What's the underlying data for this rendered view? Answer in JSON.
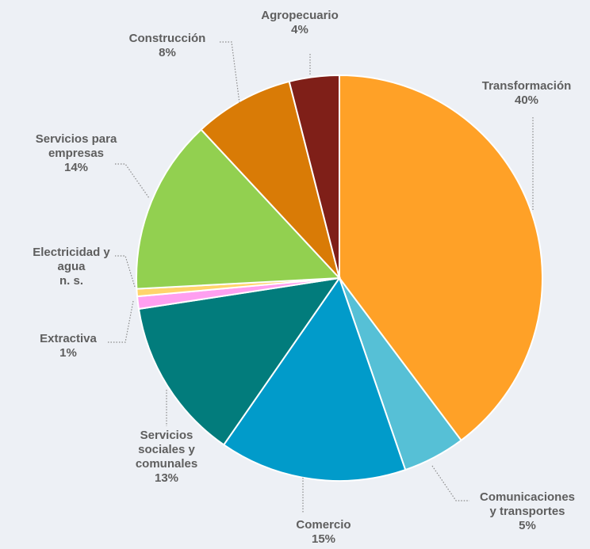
{
  "chart_data": {
    "type": "pie",
    "title": "",
    "legend": "none",
    "slices": [
      {
        "label": "Transformación",
        "value": 40,
        "display": "40%",
        "color": "#ffa127"
      },
      {
        "label": "Comunicaciones y transportes",
        "value": 5,
        "display": "5%",
        "color": "#56c0d6"
      },
      {
        "label": "Comercio",
        "value": 15,
        "display": "15%",
        "color": "#019bca"
      },
      {
        "label": "Servicios sociales y comunales",
        "value": 13,
        "display": "13%",
        "color": "#027c7c"
      },
      {
        "label": "Extractiva",
        "value": 1,
        "display": "1%",
        "color": "#ff9ff0"
      },
      {
        "label": "Electricidad y agua n. s.",
        "value": 0.6,
        "display": "",
        "color": "#ffd46b"
      },
      {
        "label": "Servicios para empresas",
        "value": 14,
        "display": "14%",
        "color": "#92d050"
      },
      {
        "label": "Construcción",
        "value": 8,
        "display": "8%",
        "color": "#d97b06"
      },
      {
        "label": "Agropecuario",
        "value": 4,
        "display": "4%",
        "color": "#7f1f18"
      }
    ]
  }
}
